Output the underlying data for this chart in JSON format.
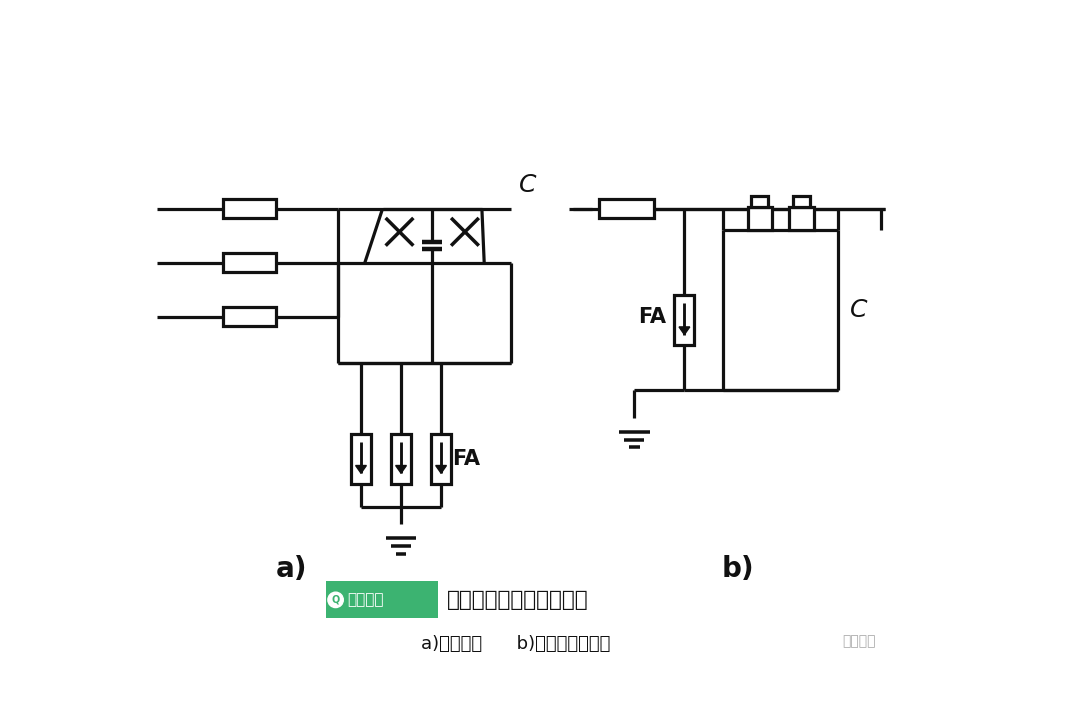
{
  "bg_color": "#ffffff",
  "lc": "#111111",
  "lw": 2.3,
  "title": "线路移相电容器保护接线",
  "subtitle": "a)接线方法      b)避雷器安装方法",
  "label_a": "a)",
  "label_b": "b)",
  "fa": "FA",
  "C": "C",
  "brand": "电工知库",
  "brand_color": "#3cb371",
  "brand2": "电工知库"
}
